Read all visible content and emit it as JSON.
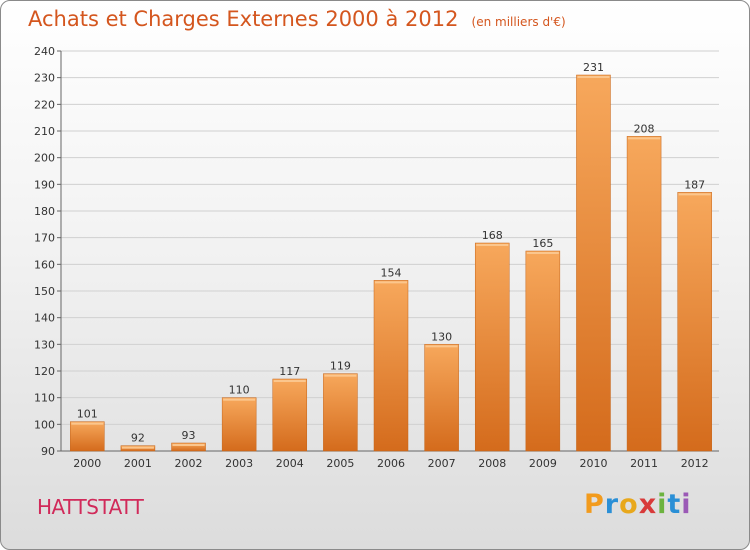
{
  "chart_data": {
    "type": "bar",
    "title": "Achats et Charges Externes 2000 à 2012",
    "subtitle": "(en milliers d'€)",
    "categories": [
      "2000",
      "2001",
      "2002",
      "2003",
      "2004",
      "2005",
      "2006",
      "2007",
      "2008",
      "2009",
      "2010",
      "2011",
      "2012"
    ],
    "values": [
      101,
      92,
      93,
      110,
      117,
      119,
      154,
      130,
      168,
      165,
      231,
      208,
      187
    ],
    "ylim": [
      90,
      240
    ],
    "yticks": [
      90,
      100,
      110,
      120,
      130,
      140,
      150,
      160,
      170,
      180,
      190,
      200,
      210,
      220,
      230,
      240
    ],
    "grid": true,
    "bar_color": "#f0913c",
    "bar_color_light": "#f7a85c",
    "bar_color_dark": "#d46b1c"
  },
  "commune": "HATTSTATT",
  "logo": {
    "letters": [
      "P",
      "r",
      "o",
      "x",
      "i",
      "t",
      "i"
    ],
    "colors": [
      "#f29b1d",
      "#2a8fd6",
      "#e8a81c",
      "#d83a3a",
      "#6cb33f",
      "#2a8fd6",
      "#9b59b6"
    ]
  }
}
